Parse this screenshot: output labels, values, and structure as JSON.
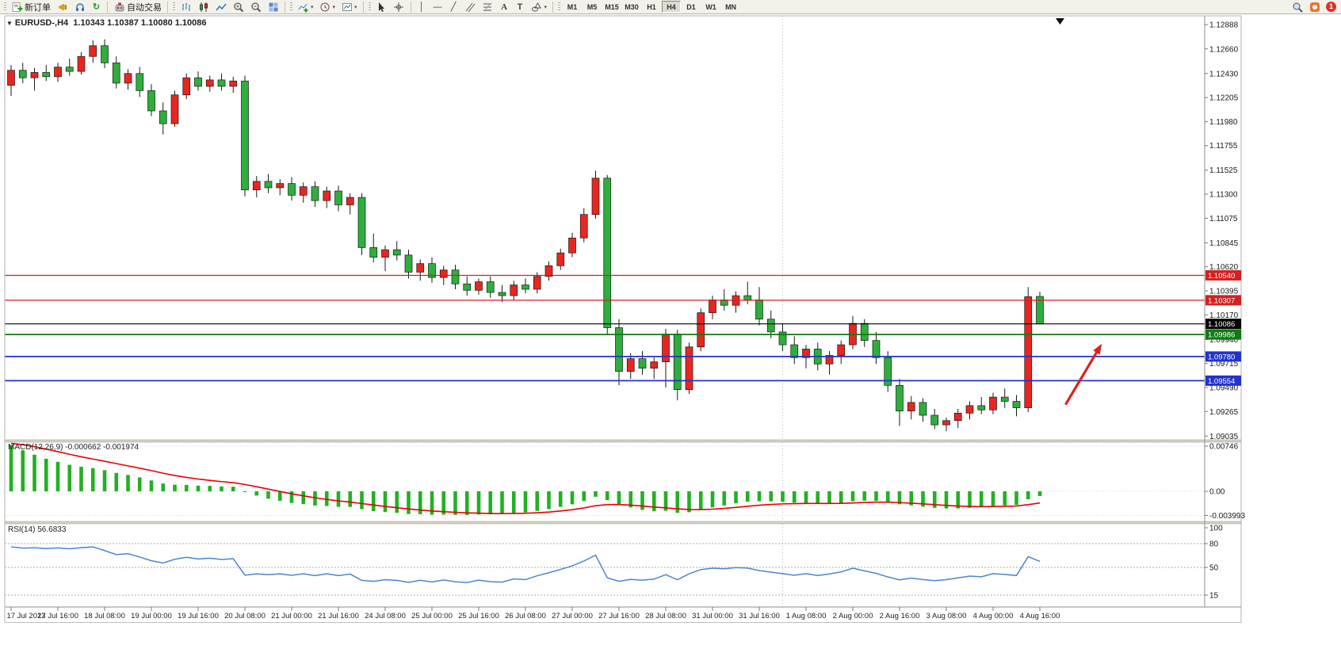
{
  "toolbar": {
    "new_order_label": "新订单",
    "auto_trading_label": "自动交易",
    "timeframes": [
      "M1",
      "M5",
      "M15",
      "M30",
      "H1",
      "H4",
      "D1",
      "W1",
      "MN"
    ],
    "active_timeframe": "H4",
    "notification_count": "1"
  },
  "icons": {
    "symbol_marker": "▼",
    "dropdown_caret": "▾",
    "vertical_line": "│",
    "horizontal_line": "—",
    "trendline": "╱",
    "text": "A",
    "text_label": "T",
    "refresh": "↻"
  },
  "chart_header": {
    "symbol_period": "EURUSD-,H4",
    "ohlc": "1.10343 1.10387 1.10080 1.10086"
  },
  "macd_panel": {
    "name": "MACD(12,26,9)",
    "values": "-0.000662 -0.001974",
    "axis_labels": [
      "0.00746",
      "0.00",
      "-0.003993"
    ]
  },
  "rsi_panel": {
    "name": "RSI(14)",
    "value": "56.6833",
    "axis_labels": [
      "100",
      "80",
      "50",
      "15"
    ],
    "levels": [
      80,
      50,
      15
    ]
  },
  "price_axis": {
    "labels": [
      "1.12888",
      "1.12660",
      "1.12430",
      "1.12205",
      "1.11980",
      "1.11755",
      "1.11525",
      "1.11300",
      "1.11075",
      "1.10845",
      "1.10620",
      "1.10395",
      "1.10170",
      "1.09940",
      "1.09715",
      "1.09490",
      "1.09265",
      "1.09035"
    ],
    "badges": [
      {
        "text": "1.10540",
        "color": "#d42020"
      },
      {
        "text": "1.10307",
        "color": "#d42020"
      },
      {
        "text": "1.10086",
        "color": "#000000"
      },
      {
        "text": "1.09986",
        "color": "#117a11"
      },
      {
        "text": "1.09780",
        "color": "#2233cc"
      },
      {
        "text": "1.09554",
        "color": "#2233cc"
      }
    ]
  },
  "time_axis": {
    "candles_per_label": 4,
    "labels": [
      "17 Jul 2023",
      "17 Jul 16:00",
      "18 Jul 08:00",
      "19 Jul 00:00",
      "19 Jul 16:00",
      "20 Jul 08:00",
      "21 Jul 00:00",
      "21 Jul 16:00",
      "24 Jul 08:00",
      "25 Jul 00:00",
      "25 Jul 16:00",
      "26 Jul 08:00",
      "27 Jul 00:00",
      "27 Jul 16:00",
      "28 Jul 08:00",
      "31 Jul 00:00",
      "31 Jul 16:00",
      "1 Aug 08:00",
      "2 Aug 00:00",
      "2 Aug 16:00",
      "3 Aug 08:00",
      "4 Aug 00:00",
      "4 Aug 16:00"
    ]
  },
  "chart_data": {
    "type": "candlestick",
    "symbol": "EURUSD-",
    "period": "H4",
    "up_color": "#e8261f",
    "down_color": "#2eae3c",
    "price_range": {
      "axis_top": 1.1297,
      "axis_bottom": 1.09
    },
    "candles_ohlc": [
      [
        1.1232,
        1.1251,
        1.1222,
        1.1246
      ],
      [
        1.1246,
        1.1253,
        1.1234,
        1.1239
      ],
      [
        1.1239,
        1.1248,
        1.1227,
        1.1244
      ],
      [
        1.1244,
        1.1251,
        1.1236,
        1.124
      ],
      [
        1.124,
        1.1253,
        1.1235,
        1.1249
      ],
      [
        1.1249,
        1.1257,
        1.1241,
        1.1245
      ],
      [
        1.1245,
        1.1263,
        1.1242,
        1.1259
      ],
      [
        1.1259,
        1.1274,
        1.1253,
        1.1269
      ],
      [
        1.1269,
        1.1275,
        1.1248,
        1.1253
      ],
      [
        1.1253,
        1.1259,
        1.1229,
        1.1234
      ],
      [
        1.1234,
        1.1247,
        1.1228,
        1.1243
      ],
      [
        1.1243,
        1.1249,
        1.1221,
        1.1227
      ],
      [
        1.1227,
        1.1233,
        1.1203,
        1.1208
      ],
      [
        1.1208,
        1.1216,
        1.1186,
        1.1196
      ],
      [
        1.1196,
        1.1227,
        1.1193,
        1.1223
      ],
      [
        1.1223,
        1.1243,
        1.1219,
        1.1239
      ],
      [
        1.1239,
        1.1245,
        1.1227,
        1.1231
      ],
      [
        1.1231,
        1.1241,
        1.1226,
        1.1237
      ],
      [
        1.1237,
        1.1243,
        1.1227,
        1.1231
      ],
      [
        1.1231,
        1.124,
        1.1225,
        1.1236
      ],
      [
        1.1236,
        1.1241,
        1.1128,
        1.1134
      ],
      [
        1.1134,
        1.1147,
        1.1127,
        1.1142
      ],
      [
        1.1142,
        1.1149,
        1.1131,
        1.1136
      ],
      [
        1.1136,
        1.1144,
        1.1129,
        1.114
      ],
      [
        1.114,
        1.1146,
        1.1124,
        1.1129
      ],
      [
        1.1129,
        1.1141,
        1.1122,
        1.1137
      ],
      [
        1.1137,
        1.1142,
        1.1118,
        1.1124
      ],
      [
        1.1124,
        1.1137,
        1.1117,
        1.1133
      ],
      [
        1.1133,
        1.1138,
        1.1114,
        1.112
      ],
      [
        1.112,
        1.1131,
        1.1111,
        1.1127
      ],
      [
        1.1127,
        1.1131,
        1.1073,
        1.108
      ],
      [
        1.108,
        1.1093,
        1.1066,
        1.1071
      ],
      [
        1.1071,
        1.1082,
        1.1058,
        1.1078
      ],
      [
        1.1078,
        1.1086,
        1.1068,
        1.1073
      ],
      [
        1.1073,
        1.1078,
        1.1051,
        1.1057
      ],
      [
        1.1057,
        1.1069,
        1.1049,
        1.1065
      ],
      [
        1.1065,
        1.1071,
        1.1047,
        1.1052
      ],
      [
        1.1052,
        1.1063,
        1.1045,
        1.1059
      ],
      [
        1.1059,
        1.1064,
        1.1041,
        1.1046
      ],
      [
        1.1046,
        1.1053,
        1.1035,
        1.104
      ],
      [
        1.104,
        1.1051,
        1.1036,
        1.1048
      ],
      [
        1.1048,
        1.1053,
        1.1033,
        1.1038
      ],
      [
        1.1038,
        1.1045,
        1.1029,
        1.1035
      ],
      [
        1.1035,
        1.1049,
        1.1031,
        1.1045
      ],
      [
        1.1045,
        1.1051,
        1.1037,
        1.1041
      ],
      [
        1.1041,
        1.1057,
        1.1037,
        1.1053
      ],
      [
        1.1053,
        1.1067,
        1.1049,
        1.1063
      ],
      [
        1.1063,
        1.1079,
        1.1059,
        1.1075
      ],
      [
        1.1075,
        1.1094,
        1.1071,
        1.1089
      ],
      [
        1.1089,
        1.1117,
        1.1085,
        1.1111
      ],
      [
        1.1111,
        1.1152,
        1.1107,
        1.1145
      ],
      [
        1.1145,
        1.1148,
        1.0999,
        1.1005
      ],
      [
        1.1005,
        1.1013,
        1.0951,
        1.0964
      ],
      [
        1.0964,
        1.0981,
        1.0957,
        1.0976
      ],
      [
        1.0976,
        1.0983,
        1.0961,
        1.0967
      ],
      [
        1.0967,
        1.0977,
        1.0957,
        1.0973
      ],
      [
        1.0973,
        1.1004,
        1.0949,
        1.0999
      ],
      [
        1.0999,
        1.1003,
        1.0937,
        1.0947
      ],
      [
        1.0947,
        1.0991,
        1.0943,
        1.0987
      ],
      [
        1.0987,
        1.1023,
        1.0983,
        1.1019
      ],
      [
        1.1019,
        1.1035,
        1.1013,
        1.1031
      ],
      [
        1.1031,
        1.1041,
        1.1021,
        1.1026
      ],
      [
        1.1026,
        1.1039,
        1.1019,
        1.1035
      ],
      [
        1.1035,
        1.1048,
        1.1027,
        1.1031
      ],
      [
        1.1031,
        1.1043,
        1.1007,
        1.1013
      ],
      [
        1.1013,
        1.1021,
        1.0995,
        1.1001
      ],
      [
        1.1001,
        1.1009,
        1.0983,
        1.0989
      ],
      [
        1.0989,
        1.0997,
        1.0971,
        1.0977
      ],
      [
        1.0977,
        1.0989,
        1.0967,
        1.0985
      ],
      [
        1.0985,
        1.0991,
        1.0965,
        1.0971
      ],
      [
        1.0971,
        1.0983,
        1.0961,
        1.0979
      ],
      [
        1.0979,
        1.0993,
        1.0971,
        1.0989
      ],
      [
        1.0989,
        1.1016,
        1.0985,
        1.1009
      ],
      [
        1.1009,
        1.1013,
        1.0987,
        1.0993
      ],
      [
        1.0993,
        1.1001,
        1.0971,
        1.0977
      ],
      [
        1.0977,
        1.0983,
        1.0945,
        1.0951
      ],
      [
        1.0951,
        1.0957,
        1.0913,
        1.0927
      ],
      [
        1.0927,
        1.0941,
        1.0919,
        1.0935
      ],
      [
        1.0935,
        1.0939,
        1.0917,
        1.0923
      ],
      [
        1.0923,
        1.0929,
        1.091,
        1.0914
      ],
      [
        1.0914,
        1.0921,
        1.0908,
        1.0918
      ],
      [
        1.0918,
        1.0929,
        1.0911,
        1.0925
      ],
      [
        1.0925,
        1.0936,
        1.0919,
        1.0932
      ],
      [
        1.0932,
        1.094,
        1.0924,
        1.0928
      ],
      [
        1.0928,
        1.0944,
        1.0924,
        1.094
      ],
      [
        1.094,
        1.0948,
        1.093,
        1.0936
      ],
      [
        1.0936,
        1.0942,
        1.0922,
        1.093
      ],
      [
        1.093,
        1.1043,
        1.0926,
        1.1034
      ],
      [
        1.10343,
        1.10387,
        1.1008,
        1.10086
      ]
    ],
    "horizontal_lines": [
      {
        "price": 1.1054,
        "color": "#d42020",
        "width": 1.3,
        "role": "resistance-upper"
      },
      {
        "price": 1.10307,
        "color": "#d42020",
        "width": 1.3,
        "role": "resistance-lower"
      },
      {
        "price": 1.10086,
        "color": "#000000",
        "width": 1.1,
        "role": "current-price"
      },
      {
        "price": 1.09986,
        "color": "#117a11",
        "width": 1.8,
        "role": "support-green"
      },
      {
        "price": 1.0978,
        "color": "#2233cc",
        "width": 1.8,
        "role": "support-blue-upper"
      },
      {
        "price": 1.09554,
        "color": "#2233cc",
        "width": 1.8,
        "role": "support-blue-lower"
      }
    ],
    "annotations": [
      {
        "type": "up-arrow",
        "color": "#e01f1f",
        "width": 3.2,
        "from_index": 90.2,
        "from_price": 1.0933,
        "to_index": 93.3,
        "to_price": 1.099
      }
    ],
    "month_separator_index": 66,
    "indicators": {
      "macd": {
        "fast": 12,
        "slow": 26,
        "signal": 9,
        "current_main": -0.000662,
        "current_signal": -0.001974,
        "histogram_color": "#22b022",
        "signal_color": "#e80000"
      },
      "rsi": {
        "period": 14,
        "current": 56.6833,
        "line_color": "#4a86d0"
      }
    }
  }
}
